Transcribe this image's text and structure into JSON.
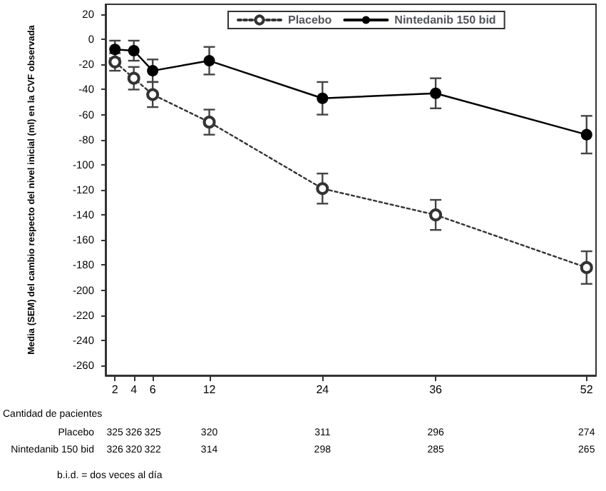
{
  "chart_data": {
    "type": "line",
    "ylabel": "Media (SEM) del cambio respecto del nivel inicial (ml) en la CVF observada",
    "x": [
      2,
      4,
      6,
      12,
      24,
      36,
      52
    ],
    "xlim": [
      1,
      53
    ],
    "xticks": [
      2,
      4,
      6,
      12,
      24,
      36,
      52
    ],
    "ylim": [
      -268,
      28
    ],
    "yticks": [
      -260,
      -240,
      -220,
      -200,
      -180,
      -160,
      -140,
      -120,
      -100,
      -80,
      -60,
      -40,
      -20,
      0,
      20
    ],
    "series": [
      {
        "name": "Placebo",
        "color": "#333333",
        "line_style": "dotted",
        "marker": "circle",
        "values": [
          -18,
          -31,
          -44,
          -66,
          -119,
          -140,
          -182
        ],
        "errors": [
          7,
          9,
          10,
          10,
          12,
          12,
          13
        ]
      },
      {
        "name": "Nintedanib 150 bid",
        "color": "#000000",
        "line_style": "solid",
        "marker": "circle",
        "values": [
          -8,
          -9,
          -25,
          -17,
          -47,
          -43,
          -76
        ],
        "errors": [
          7,
          8,
          9,
          11,
          13,
          12,
          15
        ]
      }
    ],
    "legend": "top",
    "grid": false,
    "annotations": [
      "Cantidad de pacientes",
      "Placebo",
      "325 326 325 320 311 296 274",
      "Nintedanib 150 bid",
      "326 320 322 314 298 285 265",
      "b.i.d. = dos veces al día"
    ]
  }
}
